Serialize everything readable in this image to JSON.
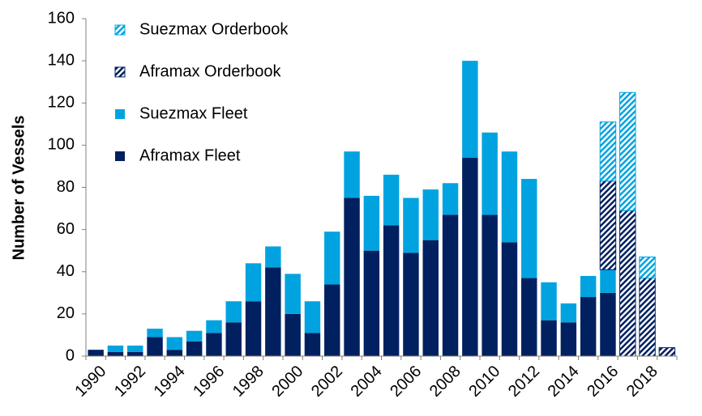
{
  "chart_data": {
    "type": "stacked_bar",
    "y_label": "Number of Vessels",
    "categories": [
      "1990",
      null,
      "1992",
      null,
      "1994",
      null,
      "1996",
      null,
      "1998",
      null,
      "2000",
      null,
      "2002",
      null,
      "2004",
      null,
      "2006",
      null,
      "2008",
      null,
      "2010",
      null,
      "2012",
      null,
      "2014",
      null,
      "2016",
      null,
      "2018",
      null
    ],
    "series": [
      {
        "name": "Aframax Fleet",
        "color": "#002060",
        "pattern": "solid",
        "values": [
          3,
          2,
          2,
          9,
          3,
          7,
          11,
          16,
          26,
          42,
          20,
          11,
          34,
          75,
          50,
          62,
          49,
          55,
          67,
          94,
          67,
          54,
          37,
          17,
          16,
          28,
          30,
          0,
          0,
          0
        ]
      },
      {
        "name": "Suezmax Fleet",
        "color": "#00a3e0",
        "pattern": "solid",
        "values": [
          0,
          3,
          3,
          4,
          6,
          5,
          6,
          10,
          18,
          10,
          19,
          15,
          25,
          22,
          26,
          24,
          26,
          24,
          15,
          46,
          39,
          43,
          47,
          18,
          9,
          10,
          11,
          0,
          0,
          0
        ]
      },
      {
        "name": "Aframax Orderbook",
        "color": "#002060",
        "pattern": "hatch",
        "values": [
          0,
          0,
          0,
          0,
          0,
          0,
          0,
          0,
          0,
          0,
          0,
          0,
          0,
          0,
          0,
          0,
          0,
          0,
          0,
          0,
          0,
          0,
          0,
          0,
          0,
          0,
          42,
          69,
          37,
          4
        ]
      },
      {
        "name": "Suezmax Orderbook",
        "color": "#00a3e0",
        "pattern": "hatch",
        "values": [
          0,
          0,
          0,
          0,
          0,
          0,
          0,
          0,
          0,
          0,
          0,
          0,
          0,
          0,
          0,
          0,
          0,
          0,
          0,
          0,
          0,
          0,
          0,
          0,
          0,
          0,
          28,
          56,
          10,
          0
        ]
      }
    ],
    "ylim": [
      0,
      160
    ],
    "yticks": [
      0,
      20,
      40,
      60,
      80,
      100,
      120,
      140,
      160
    ],
    "grid": false,
    "legend": "upper-left"
  }
}
